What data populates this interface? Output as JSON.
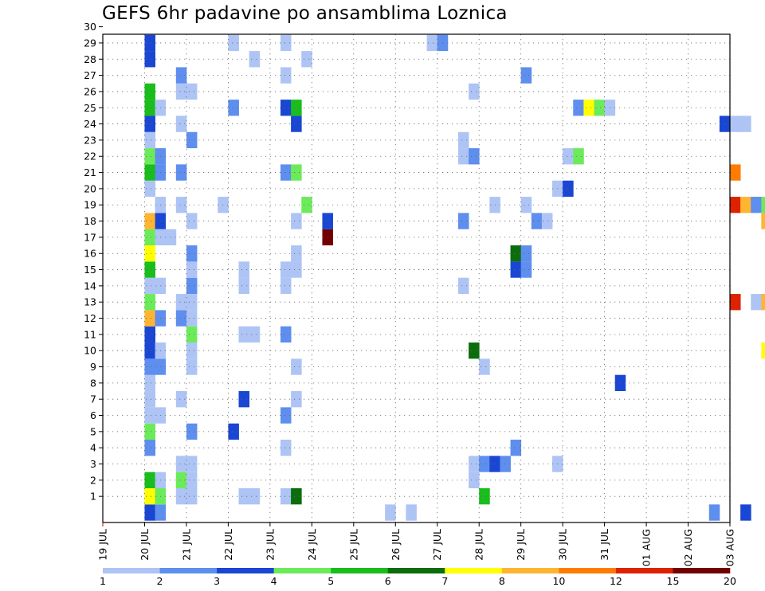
{
  "chart_data": {
    "type": "heatmap",
    "title": "GEFS 6hr padavine po ansamblima Loznica",
    "xlabel": "",
    "ylabel": "",
    "x_ticks": [
      "19 JUL",
      "20 JUL",
      "21 JUL",
      "22 JUL",
      "23 JUL",
      "24 JUL",
      "25 JUL",
      "26 JUL",
      "27 JUL",
      "28 JUL",
      "29 JUL",
      "30 JUL",
      "31 JUL",
      "01 AUG",
      "02 AUG",
      "03 AUG"
    ],
    "y_ticks": [
      1,
      2,
      3,
      4,
      5,
      6,
      7,
      8,
      9,
      10,
      11,
      12,
      13,
      14,
      15,
      16,
      17,
      18,
      19,
      20,
      21,
      22,
      23,
      24,
      25,
      26,
      27,
      28,
      29,
      30
    ],
    "x_range_days": [
      "19 JUL",
      "03 AUG"
    ],
    "steps_per_day": 4,
    "members": 30,
    "grid": true,
    "colorbar": {
      "position": "bottom",
      "labels": [
        "1",
        "2",
        "3",
        "4",
        "5",
        "6",
        "7",
        "8",
        "10",
        "12",
        "15",
        "20"
      ],
      "colors": [
        "#aec4f5",
        "#5e8eee",
        "#1a46d4",
        "#6ceb5a",
        "#19bd1c",
        "#0b6d0b",
        "#ffff00",
        "#ffb532",
        "#ff7c00",
        "#dd2200",
        "#730000"
      ]
    },
    "cells": [
      [
        0,
        4,
        "#1a46d4"
      ],
      [
        0,
        5,
        "#5e8eee"
      ],
      [
        0,
        27,
        "#aec4f5"
      ],
      [
        0,
        29,
        "#aec4f5"
      ],
      [
        0,
        58,
        "#5e8eee"
      ],
      [
        0,
        61,
        "#1a46d4"
      ],
      [
        0,
        70,
        "#1a46d4"
      ],
      [
        0,
        71,
        "#ffff00"
      ],
      [
        0,
        78,
        "#1a46d4"
      ],
      [
        1,
        4,
        "#ffff00"
      ],
      [
        1,
        5,
        "#6ceb5a"
      ],
      [
        1,
        7,
        "#aec4f5"
      ],
      [
        1,
        8,
        "#aec4f5"
      ],
      [
        1,
        13,
        "#aec4f5"
      ],
      [
        1,
        14,
        "#aec4f5"
      ],
      [
        1,
        17,
        "#aec4f5"
      ],
      [
        1,
        18,
        "#0b6d0b"
      ],
      [
        1,
        36,
        "#19bd1c"
      ],
      [
        2,
        4,
        "#19bd1c"
      ],
      [
        2,
        5,
        "#aec4f5"
      ],
      [
        2,
        7,
        "#6ceb5a"
      ],
      [
        2,
        8,
        "#aec4f5"
      ],
      [
        2,
        35,
        "#aec4f5"
      ],
      [
        2,
        67,
        "#aec4f5"
      ],
      [
        2,
        68,
        "#aec4f5"
      ],
      [
        3,
        7,
        "#aec4f5"
      ],
      [
        3,
        8,
        "#aec4f5"
      ],
      [
        3,
        35,
        "#aec4f5"
      ],
      [
        3,
        36,
        "#5e8eee"
      ],
      [
        3,
        37,
        "#1a46d4"
      ],
      [
        3,
        38,
        "#5e8eee"
      ],
      [
        3,
        43,
        "#aec4f5"
      ],
      [
        4,
        4,
        "#5e8eee"
      ],
      [
        4,
        17,
        "#aec4f5"
      ],
      [
        4,
        39,
        "#5e8eee"
      ],
      [
        5,
        4,
        "#6ceb5a"
      ],
      [
        5,
        8,
        "#5e8eee"
      ],
      [
        5,
        12,
        "#1a46d4"
      ],
      [
        6,
        4,
        "#aec4f5"
      ],
      [
        6,
        5,
        "#aec4f5"
      ],
      [
        6,
        17,
        "#5e8eee"
      ],
      [
        6,
        78,
        "#5e8eee"
      ],
      [
        6,
        79,
        "#aec4f5"
      ],
      [
        7,
        4,
        "#aec4f5"
      ],
      [
        7,
        7,
        "#aec4f5"
      ],
      [
        7,
        13,
        "#1a46d4"
      ],
      [
        7,
        18,
        "#aec4f5"
      ],
      [
        7,
        66,
        "#5e8eee"
      ],
      [
        8,
        4,
        "#aec4f5"
      ],
      [
        8,
        49,
        "#1a46d4"
      ],
      [
        8,
        69,
        "#aec4f5"
      ],
      [
        8,
        72,
        "#5e8eee"
      ],
      [
        8,
        73,
        "#19bd1c"
      ],
      [
        8,
        74,
        "#aec4f5"
      ],
      [
        8,
        79,
        "#ff7c00"
      ],
      [
        9,
        4,
        "#5e8eee"
      ],
      [
        9,
        5,
        "#5e8eee"
      ],
      [
        9,
        8,
        "#aec4f5"
      ],
      [
        9,
        18,
        "#aec4f5"
      ],
      [
        9,
        36,
        "#aec4f5"
      ],
      [
        10,
        4,
        "#1a46d4"
      ],
      [
        10,
        5,
        "#aec4f5"
      ],
      [
        10,
        8,
        "#aec4f5"
      ],
      [
        10,
        35,
        "#0b6d0b"
      ],
      [
        10,
        63,
        "#ffff00"
      ],
      [
        10,
        64,
        "#19bd1c"
      ],
      [
        10,
        69,
        "#aec4f5"
      ],
      [
        10,
        71,
        "#aec4f5"
      ],
      [
        10,
        72,
        "#aec4f5"
      ],
      [
        10,
        73,
        "#1a46d4"
      ],
      [
        10,
        74,
        "#19bd1c"
      ],
      [
        10,
        75,
        "#6ceb5a"
      ],
      [
        10,
        76,
        "#6ceb5a"
      ],
      [
        10,
        77,
        "#19bd1c"
      ],
      [
        10,
        78,
        "#1a46d4"
      ],
      [
        11,
        4,
        "#1a46d4"
      ],
      [
        11,
        8,
        "#6ceb5a"
      ],
      [
        11,
        13,
        "#aec4f5"
      ],
      [
        11,
        14,
        "#aec4f5"
      ],
      [
        11,
        17,
        "#5e8eee"
      ],
      [
        11,
        79,
        "#1a46d4"
      ],
      [
        12,
        4,
        "#ffb532"
      ],
      [
        12,
        5,
        "#5e8eee"
      ],
      [
        12,
        7,
        "#5e8eee"
      ],
      [
        12,
        8,
        "#aec4f5"
      ],
      [
        12,
        79,
        "#aec4f5"
      ],
      [
        13,
        4,
        "#6ceb5a"
      ],
      [
        13,
        7,
        "#aec4f5"
      ],
      [
        13,
        8,
        "#aec4f5"
      ],
      [
        13,
        60,
        "#dd2200"
      ],
      [
        13,
        62,
        "#aec4f5"
      ],
      [
        13,
        63,
        "#ffb532"
      ],
      [
        13,
        64,
        "#1a46d4"
      ],
      [
        13,
        65,
        "#aec4f5"
      ],
      [
        14,
        4,
        "#aec4f5"
      ],
      [
        14,
        5,
        "#aec4f5"
      ],
      [
        14,
        8,
        "#5e8eee"
      ],
      [
        14,
        13,
        "#aec4f5"
      ],
      [
        14,
        17,
        "#aec4f5"
      ],
      [
        14,
        34,
        "#aec4f5"
      ],
      [
        14,
        73,
        "#19bd1c"
      ],
      [
        14,
        79,
        "#5e8eee"
      ],
      [
        15,
        4,
        "#19bd1c"
      ],
      [
        15,
        8,
        "#aec4f5"
      ],
      [
        15,
        13,
        "#aec4f5"
      ],
      [
        15,
        17,
        "#aec4f5"
      ],
      [
        15,
        18,
        "#aec4f5"
      ],
      [
        15,
        39,
        "#1a46d4"
      ],
      [
        15,
        40,
        "#5e8eee"
      ],
      [
        15,
        64,
        "#5e8eee"
      ],
      [
        16,
        4,
        "#ffff00"
      ],
      [
        16,
        8,
        "#5e8eee"
      ],
      [
        16,
        18,
        "#aec4f5"
      ],
      [
        16,
        39,
        "#0b6d0b"
      ],
      [
        16,
        40,
        "#5e8eee"
      ],
      [
        17,
        4,
        "#6ceb5a"
      ],
      [
        17,
        5,
        "#aec4f5"
      ],
      [
        17,
        6,
        "#aec4f5"
      ],
      [
        17,
        21,
        "#730000"
      ],
      [
        17,
        79,
        "#ffff00"
      ],
      [
        18,
        4,
        "#ffb532"
      ],
      [
        18,
        5,
        "#1a46d4"
      ],
      [
        18,
        8,
        "#aec4f5"
      ],
      [
        18,
        18,
        "#aec4f5"
      ],
      [
        18,
        21,
        "#1a46d4"
      ],
      [
        18,
        34,
        "#5e8eee"
      ],
      [
        18,
        41,
        "#5e8eee"
      ],
      [
        18,
        42,
        "#aec4f5"
      ],
      [
        18,
        63,
        "#ffb532"
      ],
      [
        18,
        64,
        "#5e8eee"
      ],
      [
        18,
        72,
        "#aec4f5"
      ],
      [
        18,
        73,
        "#5e8eee"
      ],
      [
        18,
        74,
        "#0b6d0b"
      ],
      [
        18,
        75,
        "#ffb532"
      ],
      [
        18,
        76,
        "#aec4f5"
      ],
      [
        19,
        5,
        "#aec4f5"
      ],
      [
        19,
        7,
        "#aec4f5"
      ],
      [
        19,
        11,
        "#aec4f5"
      ],
      [
        19,
        19,
        "#6ceb5a"
      ],
      [
        19,
        37,
        "#aec4f5"
      ],
      [
        19,
        40,
        "#aec4f5"
      ],
      [
        19,
        60,
        "#dd2200"
      ],
      [
        19,
        61,
        "#ffb532"
      ],
      [
        19,
        62,
        "#5e8eee"
      ],
      [
        19,
        63,
        "#6ceb5a"
      ],
      [
        19,
        64,
        "#aec4f5"
      ],
      [
        19,
        68,
        "#aec4f5"
      ],
      [
        19,
        69,
        "#aec4f5"
      ],
      [
        19,
        71,
        "#aec4f5"
      ],
      [
        19,
        72,
        "#5e8eee"
      ],
      [
        20,
        4,
        "#aec4f5"
      ],
      [
        20,
        43,
        "#aec4f5"
      ],
      [
        20,
        44,
        "#1a46d4"
      ],
      [
        21,
        4,
        "#19bd1c"
      ],
      [
        21,
        5,
        "#5e8eee"
      ],
      [
        21,
        7,
        "#5e8eee"
      ],
      [
        21,
        17,
        "#5e8eee"
      ],
      [
        21,
        18,
        "#6ceb5a"
      ],
      [
        21,
        60,
        "#ff7c00"
      ],
      [
        21,
        72,
        "#aec4f5"
      ],
      [
        21,
        73,
        "#aec4f5"
      ],
      [
        22,
        4,
        "#6ceb5a"
      ],
      [
        22,
        5,
        "#5e8eee"
      ],
      [
        22,
        34,
        "#aec4f5"
      ],
      [
        22,
        35,
        "#5e8eee"
      ],
      [
        22,
        44,
        "#aec4f5"
      ],
      [
        22,
        45,
        "#6ceb5a"
      ],
      [
        22,
        79,
        "#aec4f5"
      ],
      [
        23,
        4,
        "#aec4f5"
      ],
      [
        23,
        8,
        "#5e8eee"
      ],
      [
        23,
        34,
        "#aec4f5"
      ],
      [
        23,
        68,
        "#5e8eee"
      ],
      [
        23,
        69,
        "#aec4f5"
      ],
      [
        24,
        4,
        "#1a46d4"
      ],
      [
        24,
        7,
        "#aec4f5"
      ],
      [
        24,
        18,
        "#1a46d4"
      ],
      [
        24,
        59,
        "#1a46d4"
      ],
      [
        24,
        60,
        "#aec4f5"
      ],
      [
        24,
        61,
        "#aec4f5"
      ],
      [
        24,
        64,
        "#19bd1c"
      ],
      [
        25,
        4,
        "#19bd1c"
      ],
      [
        25,
        5,
        "#aec4f5"
      ],
      [
        25,
        12,
        "#5e8eee"
      ],
      [
        25,
        17,
        "#1a46d4"
      ],
      [
        25,
        18,
        "#19bd1c"
      ],
      [
        25,
        45,
        "#5e8eee"
      ],
      [
        25,
        46,
        "#ffff00"
      ],
      [
        25,
        47,
        "#6ceb5a"
      ],
      [
        25,
        48,
        "#aec4f5"
      ],
      [
        25,
        73,
        "#aec4f5"
      ],
      [
        25,
        78,
        "#aec4f5"
      ],
      [
        26,
        4,
        "#19bd1c"
      ],
      [
        26,
        7,
        "#aec4f5"
      ],
      [
        26,
        8,
        "#aec4f5"
      ],
      [
        26,
        35,
        "#aec4f5"
      ],
      [
        26,
        72,
        "#5e8eee"
      ],
      [
        26,
        73,
        "#19bd1c"
      ],
      [
        27,
        7,
        "#5e8eee"
      ],
      [
        27,
        17,
        "#aec4f5"
      ],
      [
        27,
        40,
        "#5e8eee"
      ],
      [
        27,
        68,
        "#5e8eee"
      ],
      [
        27,
        69,
        "#aec4f5"
      ],
      [
        27,
        71,
        "#5e8eee"
      ],
      [
        27,
        72,
        "#aec4f5"
      ],
      [
        28,
        4,
        "#1a46d4"
      ],
      [
        28,
        14,
        "#aec4f5"
      ],
      [
        28,
        19,
        "#aec4f5"
      ],
      [
        28,
        79,
        "#aec4f5"
      ],
      [
        29,
        4,
        "#1a46d4"
      ],
      [
        29,
        12,
        "#aec4f5"
      ],
      [
        29,
        17,
        "#aec4f5"
      ],
      [
        29,
        31,
        "#aec4f5"
      ],
      [
        29,
        32,
        "#5e8eee"
      ],
      [
        29,
        69,
        "#aec4f5"
      ],
      [
        29,
        73,
        "#aec4f5"
      ],
      [
        29,
        79,
        "#1a46d4"
      ]
    ]
  }
}
